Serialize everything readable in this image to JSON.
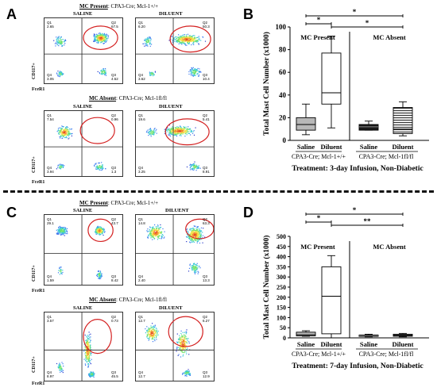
{
  "panels": {
    "A": {
      "letter": "A",
      "present_title_bold": "MC Present",
      "present_title_rest": ": CPA3-Cre; Mcl-1+/+",
      "absent_title_bold": "MC Absent",
      "absent_title_rest": ": CPA3-Cre; Mcl-1fl/fl",
      "saline": "SALINE",
      "diluent": "DILUENT",
      "y_axis": "CD117+",
      "x_axis": "FceR1",
      "present_quadrants": {
        "saline": [
          "Q1\n2.65",
          "Q2\n67.5",
          "Q4\n3.05",
          "Q3\n4.52"
        ],
        "diluent": [
          "Q1\n6.20",
          "Q2\n50.3",
          "Q4\n3.62",
          "Q3\n10.4"
        ]
      },
      "absent_quadrants": {
        "saline": [
          "Q1\n7.54",
          "Q2\n0.96",
          "Q4\n3.94",
          "Q3\n1.3"
        ],
        "diluent": [
          "Q1\n19.6",
          "Q2\n5.41",
          "Q4\n3.25",
          "Q3\n8.91"
        ]
      }
    },
    "B": {
      "letter": "B",
      "sig_star_1": "*",
      "sig_star_2": "*",
      "sig_star_3": "*"
    },
    "C": {
      "letter": "C",
      "present_title_bold": "MC Present",
      "present_title_rest": ": CPA3-Cre; Mcl-1+/+",
      "absent_title_bold": "MC Absent",
      "absent_title_rest": ": CPA3-Cre; Mcl-1fl/fl",
      "saline": "SALINE",
      "diluent": "DILUENT",
      "y_axis": "CD117+",
      "x_axis": "FceR1",
      "present_quadrants": {
        "saline": [
          "Q1\n29.1",
          "Q2\n43.7",
          "Q4\n1.59",
          "Q3\n8.42"
        ],
        "diluent": [
          "Q1\n14.8",
          "Q2\n63.3",
          "Q4\n2.40",
          "Q3\n13.3"
        ]
      },
      "absent_quadrants": {
        "saline": [
          "Q1\n3.57",
          "Q2\n0.73",
          "Q4\n8.97",
          "Q3\n45.5"
        ],
        "diluent": [
          "Q1\n12.7",
          "Q2\n6.27",
          "Q4\n12.7",
          "Q3\n12.9"
        ]
      }
    },
    "D": {
      "letter": "D",
      "sig_star_1": "*",
      "sig_star_2": "**",
      "sig_star_3": "*"
    }
  },
  "chart_data": [
    {
      "type": "box",
      "panel": "B",
      "title": "",
      "ylabel": "Total Mast Cell Number (x1000)",
      "ylim": [
        0,
        100
      ],
      "yticks": [
        0,
        20,
        40,
        60,
        80,
        100
      ],
      "region_labels": [
        "MC Present",
        "MC Absent"
      ],
      "categories": [
        "Saline",
        "Diluent",
        "Saline",
        "Diluent"
      ],
      "group_labels": [
        "CPA3-Cre; Mcl-1+/+",
        "CPA3-Cre; Mcl-1fl/fl"
      ],
      "xlabel": "Treatment: 3-day Infusion, Non-Diabetic",
      "boxes": [
        {
          "category": "Saline",
          "group": "CPA3-Cre; Mcl-1+/+",
          "min": 5,
          "q1": 9,
          "median": 14,
          "q3": 20,
          "max": 32,
          "fill": "#b8b8b8"
        },
        {
          "category": "Diluent",
          "group": "CPA3-Cre; Mcl-1+/+",
          "min": 11,
          "q1": 32,
          "median": 42,
          "q3": 77,
          "max": 92,
          "fill": "#ffffff"
        },
        {
          "category": "Saline",
          "group": "CPA3-Cre; Mcl-1fl/fl",
          "min": 9,
          "q1": 9,
          "median": 12,
          "q3": 14,
          "max": 17,
          "fill": "#1a1a1a"
        },
        {
          "category": "Diluent",
          "group": "CPA3-Cre; Mcl-1fl/fl",
          "min": 4,
          "q1": 6,
          "median": 10,
          "q3": 29,
          "max": 34,
          "fill": "hatched"
        }
      ]
    },
    {
      "type": "box",
      "panel": "D",
      "title": "",
      "ylabel": "Total Mast Cell Number (x1000)",
      "ylim": [
        0,
        500
      ],
      "yticks": [
        0,
        50,
        100,
        150,
        200,
        250,
        300,
        350,
        400,
        450,
        500
      ],
      "region_labels": [
        "MC Present",
        "MC Absent"
      ],
      "categories": [
        "Saline",
        "Diluent",
        "Saline",
        "Diluent"
      ],
      "group_labels": [
        "CPA3-Cre; Mcl-1+/+",
        "CPA3-Cre; Mcl-1fl/fl"
      ],
      "xlabel": "Treatment: 7-day Infusion, Non-Diabetic",
      "boxes": [
        {
          "category": "Saline",
          "group": "CPA3-Cre; Mcl-1+/+",
          "min": 8,
          "q1": 10,
          "median": 15,
          "q3": 28,
          "max": 35,
          "fill": "#b8b8b8"
        },
        {
          "category": "Diluent",
          "group": "CPA3-Cre; Mcl-1+/+",
          "min": 0,
          "q1": 20,
          "median": 205,
          "q3": 350,
          "max": 405,
          "fill": "#ffffff"
        },
        {
          "category": "Saline",
          "group": "CPA3-Cre; Mcl-1fl/fl",
          "min": 5,
          "q1": 7,
          "median": 10,
          "q3": 14,
          "max": 18,
          "fill": "#1a1a1a"
        },
        {
          "category": "Diluent",
          "group": "CPA3-Cre; Mcl-1fl/fl",
          "min": 5,
          "q1": 8,
          "median": 12,
          "q3": 18,
          "max": 22,
          "fill": "hatched"
        }
      ]
    }
  ]
}
